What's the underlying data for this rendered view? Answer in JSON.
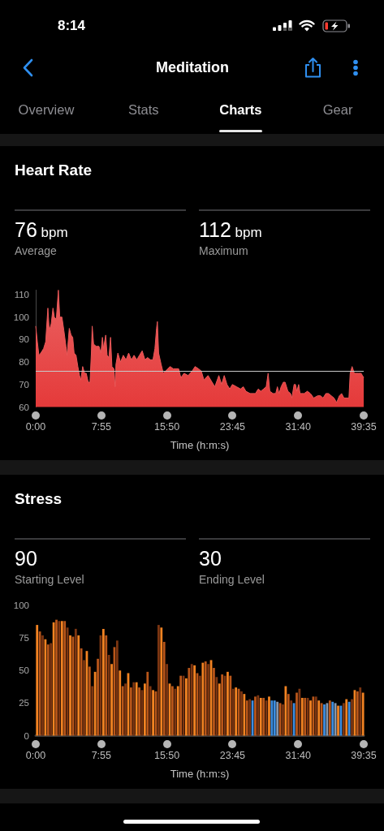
{
  "chart_data": [
    {
      "type": "other",
      "title": "Meditation",
      "annotations": [
        "8:14",
        "Overview",
        "Stats",
        "Charts",
        "Gear"
      ]
    },
    {
      "type": "area",
      "title": "Heart Rate",
      "annotations": [
        "76 bpm",
        "Average",
        "112 bpm",
        "Maximum"
      ],
      "xlabel": "Time (h:m:s)",
      "color": "#e53a3a",
      "x": [
        0,
        12,
        23,
        37,
        57,
        72,
        88,
        98,
        112,
        125,
        135,
        149,
        164,
        174,
        190,
        204,
        219,
        227,
        243,
        256,
        268,
        278,
        292,
        305,
        317,
        327,
        340,
        354,
        366,
        380,
        393,
        403,
        409,
        419,
        438,
        458,
        472,
        483,
        491,
        507,
        517,
        530,
        542,
        552,
        566,
        575,
        581,
        595,
        614,
        634,
        654,
        673,
        693,
        712,
        732,
        751,
        771,
        791,
        810,
        830,
        849,
        863,
        875,
        881,
        890,
        908,
        924,
        941,
        973,
        996,
        1035,
        1051,
        1074,
        1104,
        1133,
        1154,
        1179,
        1199,
        1218,
        1248,
        1277,
        1297,
        1326,
        1346,
        1365,
        1385,
        1405,
        1424,
        1454,
        1483,
        1503,
        1522,
        1552,
        1591,
        1611,
        1630,
        1650,
        1669,
        1683,
        1695,
        1718,
        1738,
        1750,
        1762,
        1777,
        1793,
        1806,
        1826,
        1845,
        1855,
        1871,
        1881,
        1891,
        1904,
        1914,
        1944,
        1967,
        1989,
        2013,
        2042,
        2062,
        2081,
        2101,
        2120,
        2140,
        2160,
        2179,
        2199,
        2215,
        2232,
        2252,
        2268,
        2277,
        2291,
        2307,
        2336,
        2356,
        2366,
        2375
      ],
      "values": [
        96,
        89,
        83,
        84,
        86,
        89,
        104,
        94,
        97,
        104,
        100,
        99,
        112,
        100,
        100,
        94,
        87,
        83,
        95,
        92,
        91,
        84,
        83,
        78,
        74,
        72,
        78,
        75,
        75,
        71,
        71,
        84,
        96,
        88,
        87,
        87,
        84,
        91,
        86,
        92,
        83,
        82,
        91,
        78,
        77,
        69,
        79,
        84,
        80,
        83,
        81,
        84,
        81,
        83,
        81,
        83,
        85,
        81,
        82,
        81,
        81,
        86,
        95,
        98,
        84,
        79,
        75,
        76,
        78,
        77,
        77,
        73,
        75,
        74,
        76,
        78,
        77,
        76,
        72,
        74,
        71,
        69,
        74,
        70,
        74,
        70,
        68,
        70,
        69,
        68,
        69,
        67,
        66,
        66,
        68,
        67,
        68,
        69,
        75,
        67,
        66,
        66,
        69,
        66,
        69,
        71,
        71,
        67,
        66,
        64,
        70,
        70,
        67,
        70,
        66,
        66,
        67,
        66,
        64,
        65,
        65,
        64,
        66,
        66,
        65,
        64,
        62,
        65,
        66,
        64,
        64,
        64,
        75,
        78,
        75,
        75,
        75,
        74,
        73
      ],
      "xlim": [
        0,
        2375
      ],
      "xticks": [
        {
          "value": 0,
          "label": "0:00"
        },
        {
          "value": 475,
          "label": "7:55"
        },
        {
          "value": 950,
          "label": "15:50"
        },
        {
          "value": 1425,
          "label": "23:45"
        },
        {
          "value": 1900,
          "label": "31:40"
        },
        {
          "value": 2375,
          "label": "39:35"
        }
      ],
      "ylim": [
        60,
        112
      ],
      "yticks": [
        60,
        70,
        80,
        90,
        100,
        110
      ],
      "ref_lines": [
        {
          "axis": "y",
          "value": 76,
          "color": "#c8c8c8"
        }
      ]
    },
    {
      "type": "bar",
      "title": "Stress",
      "annotations": [
        "90",
        "Starting Level",
        "30",
        "Ending Level"
      ],
      "xlabel": "Time (h:m:s)",
      "x": [
        10,
        30,
        50,
        70,
        90,
        110,
        130,
        150,
        170,
        190,
        210,
        230,
        250,
        270,
        290,
        310,
        330,
        350,
        370,
        390,
        410,
        430,
        450,
        470,
        490,
        510,
        530,
        550,
        570,
        590,
        610,
        630,
        650,
        670,
        690,
        710,
        730,
        750,
        770,
        790,
        810,
        830,
        850,
        870,
        890,
        910,
        930,
        950,
        970,
        990,
        1010,
        1030,
        1050,
        1070,
        1090,
        1110,
        1130,
        1150,
        1170,
        1190,
        1210,
        1230,
        1250,
        1270,
        1290,
        1310,
        1330,
        1350,
        1370,
        1390,
        1410,
        1430,
        1450,
        1470,
        1490,
        1510,
        1530,
        1550,
        1570,
        1590,
        1610,
        1630,
        1650,
        1670,
        1690,
        1710,
        1730,
        1750,
        1770,
        1790,
        1810,
        1830,
        1850,
        1870,
        1890,
        1910,
        1930,
        1950,
        1970,
        1990,
        2010,
        2030,
        2050,
        2070,
        2090,
        2110,
        2130,
        2150,
        2170,
        2190,
        2210,
        2230,
        2250,
        2270,
        2290,
        2310,
        2330,
        2350,
        2370
      ],
      "values": [
        85,
        80,
        77,
        74,
        70,
        71,
        87,
        89,
        88,
        88,
        88,
        83,
        77,
        76,
        82,
        77,
        67,
        58,
        65,
        53,
        38,
        49,
        59,
        77,
        82,
        77,
        62,
        55,
        68,
        73,
        50,
        38,
        40,
        48,
        37,
        41,
        41,
        37,
        35,
        40,
        49,
        38,
        35,
        34,
        85,
        83,
        72,
        55,
        40,
        38,
        36,
        38,
        46,
        46,
        44,
        52,
        55,
        54,
        48,
        46,
        56,
        57,
        55,
        58,
        52,
        45,
        40,
        47,
        46,
        49,
        46,
        36,
        37,
        36,
        34,
        32,
        27,
        28,
        27,
        30,
        31,
        29,
        29,
        27,
        30,
        27,
        27,
        26,
        25,
        24,
        38,
        32,
        27,
        25,
        33,
        36,
        29,
        29,
        29,
        27,
        30,
        30,
        27,
        25,
        24,
        25,
        27,
        26,
        25,
        23,
        23,
        25,
        28,
        26,
        28,
        35,
        34,
        37,
        33
      ],
      "colors": [
        "#f28322",
        "#b9561a",
        "#7c3511",
        "#f28322",
        "#b9561a",
        "#7c3511",
        "#f28322",
        "#b9561a",
        "#7c3511",
        "#f28322",
        "#b9561a",
        "#7c3511",
        "#f28322",
        "#b9561a",
        "#7c3511",
        "#f28322",
        "#b9561a",
        "#7c3511",
        "#f28322",
        "#b9561a",
        "#7c3511",
        "#f28322",
        "#b9561a",
        "#7c3511",
        "#f28322",
        "#b9561a",
        "#7c3511",
        "#f28322",
        "#b9561a",
        "#7c3511",
        "#f28322",
        "#b9561a",
        "#7c3511",
        "#f28322",
        "#b9561a",
        "#7c3511",
        "#f28322",
        "#b9561a",
        "#7c3511",
        "#f28322",
        "#b9561a",
        "#7c3511",
        "#f28322",
        "#b9561a",
        "#7c3511",
        "#f28322",
        "#b9561a",
        "#7c3511",
        "#f28322",
        "#b9561a",
        "#7c3511",
        "#f28322",
        "#b9561a",
        "#7c3511",
        "#f28322",
        "#b9561a",
        "#7c3511",
        "#f28322",
        "#b9561a",
        "#7c3511",
        "#f28322",
        "#b9561a",
        "#7c3511",
        "#f28322",
        "#b9561a",
        "#7c3511",
        "#f28322",
        "#b9561a",
        "#7c3511",
        "#f28322",
        "#b9561a",
        "#7c3511",
        "#f28322",
        "#b9561a",
        "#7c3511",
        "#f28322",
        "#b9561a",
        "#7c3511",
        "#3d8ee0",
        "#b9561a",
        "#7c3511",
        "#f28322",
        "#b9561a",
        "#7c3511",
        "#f28322",
        "#3d8ee0",
        "#3d8ee0",
        "#8797ad",
        "#b9561a",
        "#7c3511",
        "#f28322",
        "#b9561a",
        "#7c3511",
        "#3d8ee0",
        "#b9561a",
        "#7c3511",
        "#f28322",
        "#b9561a",
        "#7c3511",
        "#f28322",
        "#b9561a",
        "#7c3511",
        "#f28322",
        "#b9561a",
        "#3d8ee0",
        "#8797ad",
        "#b9561a",
        "#3d8ee0",
        "#8797ad",
        "#f28322",
        "#3d8ee0",
        "#7c3511",
        "#f28322",
        "#3d8ee0",
        "#7c3511",
        "#f28322",
        "#b9561a",
        "#7c3511",
        "#f28322"
      ],
      "xlim": [
        0,
        2375
      ],
      "xticks": [
        {
          "value": 0,
          "label": "0:00"
        },
        {
          "value": 475,
          "label": "7:55"
        },
        {
          "value": 950,
          "label": "15:50"
        },
        {
          "value": 1425,
          "label": "23:45"
        },
        {
          "value": 1900,
          "label": "31:40"
        },
        {
          "value": 2375,
          "label": "39:35"
        }
      ],
      "ylim": [
        0,
        100
      ],
      "yticks": [
        0,
        25,
        50,
        75,
        100
      ]
    }
  ]
}
